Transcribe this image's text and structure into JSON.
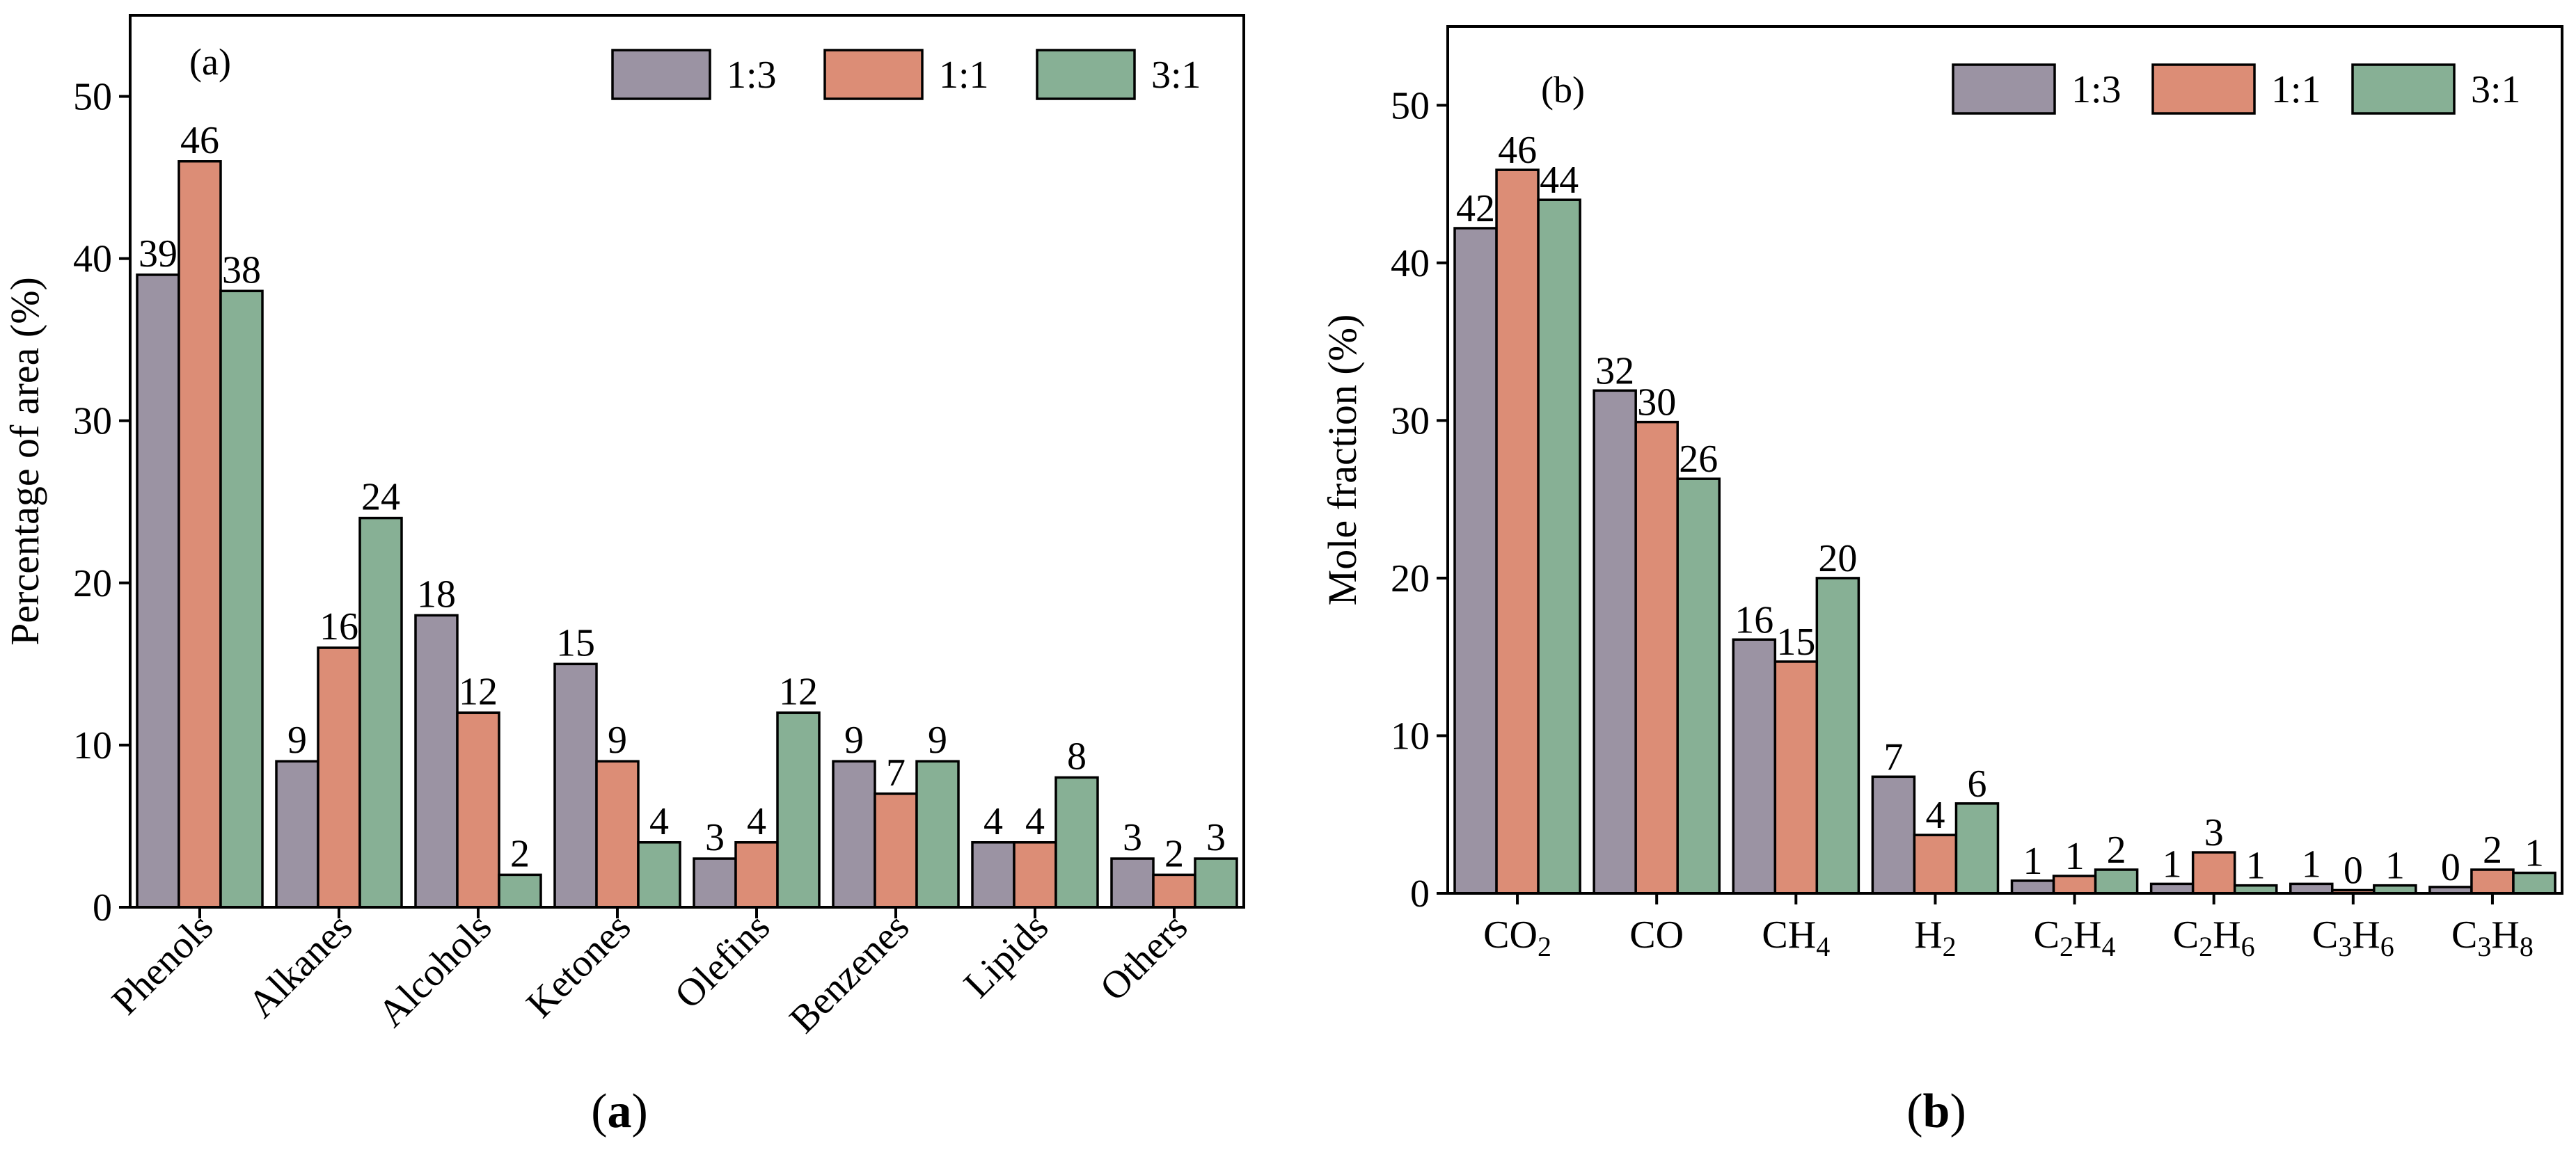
{
  "chart_data": [
    {
      "panel_label": "(a)",
      "caption_label": "a",
      "type": "bar",
      "title": "",
      "xlabel": "",
      "ylabel": "Percentage of area (%)",
      "ylim": [
        0,
        55
      ],
      "yticks": [
        0,
        10,
        20,
        30,
        40,
        50
      ],
      "grid": false,
      "legend_position": "top-right",
      "categories": [
        {
          "text": "Phenols"
        },
        {
          "text": "Alkanes"
        },
        {
          "text": "Alcohols"
        },
        {
          "text": "Ketones"
        },
        {
          "text": "Olefins"
        },
        {
          "text": "Benzenes"
        },
        {
          "text": "Lipids"
        },
        {
          "text": "Others"
        }
      ],
      "series": [
        {
          "name": "1:3",
          "color": "#9b93a3",
          "values": [
            39,
            9,
            18,
            15,
            3,
            9,
            4,
            3
          ],
          "labels": [
            "39",
            "9",
            "18",
            "15",
            "3",
            "9",
            "4",
            "3"
          ]
        },
        {
          "name": "1:1",
          "color": "#dc8d76",
          "values": [
            46,
            16,
            12,
            9,
            4,
            7,
            4,
            2
          ],
          "labels": [
            "46",
            "16",
            "12",
            "9",
            "4",
            "7",
            "4",
            "2"
          ]
        },
        {
          "name": "3:1",
          "color": "#87b095",
          "values": [
            38,
            24,
            2,
            4,
            12,
            9,
            8,
            3
          ],
          "labels": [
            "38",
            "24",
            "2",
            "4",
            "12",
            "9",
            "8",
            "3"
          ]
        }
      ]
    },
    {
      "panel_label": "(b)",
      "caption_label": "b",
      "type": "bar",
      "title": "",
      "xlabel": "",
      "ylabel": "Mole fraction (%)",
      "ylim": [
        0,
        55
      ],
      "yticks": [
        0,
        10,
        20,
        30,
        40,
        50
      ],
      "grid": false,
      "legend_position": "top-right",
      "categories": [
        {
          "text": "CO2",
          "parts": [
            {
              "t": "CO"
            },
            {
              "t": "2",
              "sub": true
            }
          ]
        },
        {
          "text": "CO",
          "parts": [
            {
              "t": "CO"
            }
          ]
        },
        {
          "text": "CH4",
          "parts": [
            {
              "t": "CH"
            },
            {
              "t": "4",
              "sub": true
            }
          ]
        },
        {
          "text": "H2",
          "parts": [
            {
              "t": "H"
            },
            {
              "t": "2",
              "sub": true
            }
          ]
        },
        {
          "text": "C2H4",
          "parts": [
            {
              "t": "C"
            },
            {
              "t": "2",
              "sub": true
            },
            {
              "t": "H"
            },
            {
              "t": "4",
              "sub": true
            }
          ]
        },
        {
          "text": "C2H6",
          "parts": [
            {
              "t": "C"
            },
            {
              "t": "2",
              "sub": true
            },
            {
              "t": "H"
            },
            {
              "t": "6",
              "sub": true
            }
          ]
        },
        {
          "text": "C3H6",
          "parts": [
            {
              "t": "C"
            },
            {
              "t": "3",
              "sub": true
            },
            {
              "t": "H"
            },
            {
              "t": "6",
              "sub": true
            }
          ]
        },
        {
          "text": "C3H8",
          "parts": [
            {
              "t": "C"
            },
            {
              "t": "3",
              "sub": true
            },
            {
              "t": "H"
            },
            {
              "t": "8",
              "sub": true
            }
          ]
        }
      ],
      "series": [
        {
          "name": "1:3",
          "color": "#9b93a3",
          "values": [
            42.2,
            31.9,
            16.1,
            7.4,
            0.8,
            0.6,
            0.6,
            0.4
          ],
          "labels": [
            "42",
            "32",
            "16",
            "7",
            "1",
            "1",
            "1",
            "0"
          ]
        },
        {
          "name": "1:1",
          "color": "#dc8d76",
          "values": [
            45.9,
            29.9,
            14.7,
            3.7,
            1.1,
            2.6,
            0.2,
            1.5
          ],
          "labels": [
            "46",
            "30",
            "15",
            "4",
            "1",
            "3",
            "0",
            "2"
          ]
        },
        {
          "name": "3:1",
          "color": "#87b095",
          "values": [
            44.0,
            26.3,
            20.0,
            5.7,
            1.5,
            0.5,
            0.5,
            1.3
          ],
          "labels": [
            "44",
            "26",
            "20",
            "6",
            "2",
            "1",
            "1",
            "1"
          ]
        }
      ]
    }
  ]
}
